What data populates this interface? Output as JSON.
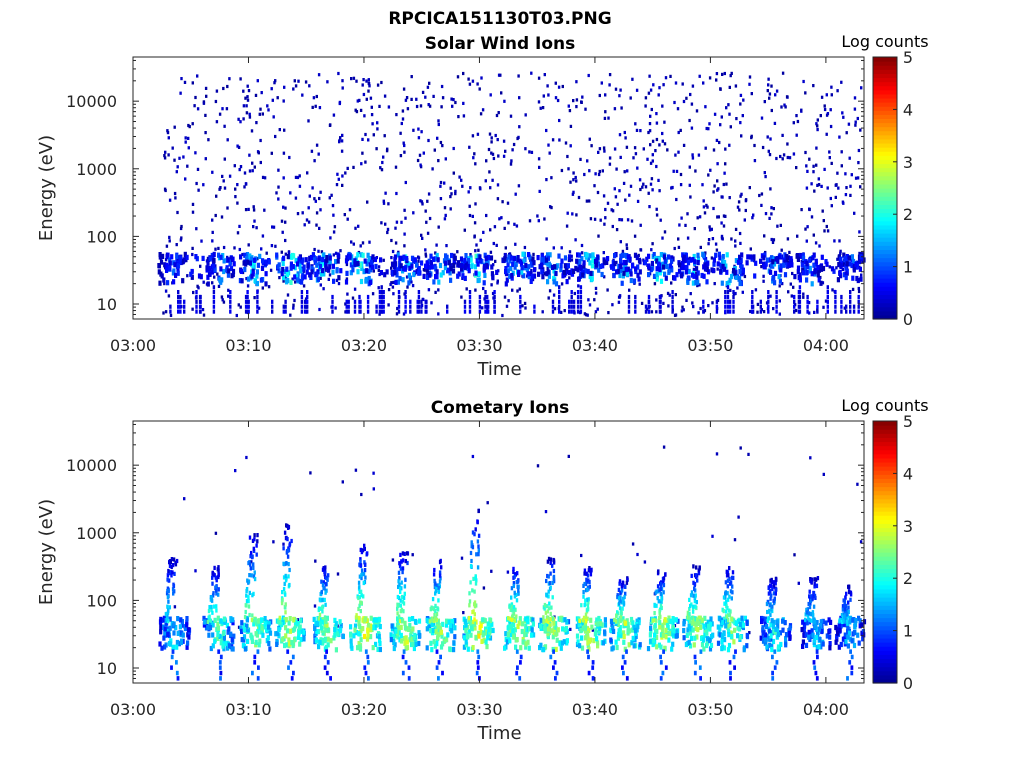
{
  "figure": {
    "title": "RPCICA151130T03.PNG"
  },
  "colors": {
    "colormap": [
      "#00008f",
      "#0000ff",
      "#0080ff",
      "#00ffff",
      "#80ff80",
      "#ffff00",
      "#ff8000",
      "#ff0000",
      "#800000"
    ],
    "frame": "#262626",
    "background": "#ffffff"
  },
  "chart_data": [
    {
      "type": "heatmap",
      "title": "Solar Wind Ions",
      "xlabel": "Time",
      "ylabel": "Energy (eV)",
      "x_ticks": [
        "03:00",
        "03:10",
        "03:20",
        "03:30",
        "03:40",
        "03:50",
        "04:00"
      ],
      "x_range_minutes": [
        0,
        63.3
      ],
      "y_ticks": [
        "10",
        "100",
        "1000",
        "10000"
      ],
      "y_tick_values": [
        10,
        100,
        1000,
        10000
      ],
      "y_range_eV": [
        6,
        45000
      ],
      "y_scale": "log",
      "colorbar": {
        "label": "Log counts",
        "range": [
          0,
          5
        ],
        "ticks": [
          "0",
          "1",
          "2",
          "3",
          "4",
          "5"
        ]
      },
      "data_start_minute": 2.5,
      "bursts": [
        {
          "t": 3.3,
          "v": 1.4
        },
        {
          "t": 7.5,
          "v": 1.8
        },
        {
          "t": 10.3,
          "v": 2.1
        },
        {
          "t": 13.5,
          "v": 2.4
        },
        {
          "t": 16.5,
          "v": 2.2
        },
        {
          "t": 19.5,
          "v": 2.3
        },
        {
          "t": 23.5,
          "v": 2.1
        },
        {
          "t": 26.5,
          "v": 2.0
        },
        {
          "t": 29.5,
          "v": 2.3
        },
        {
          "t": 33.3,
          "v": 2.1
        },
        {
          "t": 36.3,
          "v": 2.0
        },
        {
          "t": 39.5,
          "v": 2.1
        },
        {
          "t": 42.5,
          "v": 1.9
        },
        {
          "t": 45.5,
          "v": 2.2
        },
        {
          "t": 48.5,
          "v": 2.0
        },
        {
          "t": 51.5,
          "v": 2.1
        },
        {
          "t": 55.5,
          "v": 1.8
        },
        {
          "t": 58.5,
          "v": 1.6
        },
        {
          "t": 62.0,
          "v": 1.5
        }
      ],
      "noise": "dense"
    },
    {
      "type": "heatmap",
      "title": "Cometary Ions",
      "xlabel": "Time",
      "ylabel": "Energy (eV)",
      "x_ticks": [
        "03:00",
        "03:10",
        "03:20",
        "03:30",
        "03:40",
        "03:50",
        "04:00"
      ],
      "x_range_minutes": [
        0,
        63.3
      ],
      "y_ticks": [
        "10",
        "100",
        "1000",
        "10000"
      ],
      "y_tick_values": [
        10,
        100,
        1000,
        10000
      ],
      "y_range_eV": [
        6,
        45000
      ],
      "y_scale": "log",
      "colorbar": {
        "label": "Log counts",
        "range": [
          0,
          5
        ],
        "ticks": [
          "0",
          "1",
          "2",
          "3",
          "4",
          "5"
        ]
      },
      "data_start_minute": 2.5,
      "bursts": [
        {
          "t": 3.5,
          "v": 2.2,
          "peak_eV": 400
        },
        {
          "t": 7.3,
          "v": 2.6,
          "peak_eV": 300
        },
        {
          "t": 10.5,
          "v": 2.9,
          "peak_eV": 900
        },
        {
          "t": 13.5,
          "v": 3.1,
          "peak_eV": 1200
        },
        {
          "t": 16.8,
          "v": 3.0,
          "peak_eV": 300
        },
        {
          "t": 20.0,
          "v": 3.3,
          "peak_eV": 600
        },
        {
          "t": 23.5,
          "v": 3.1,
          "peak_eV": 500
        },
        {
          "t": 26.5,
          "v": 3.0,
          "peak_eV": 400
        },
        {
          "t": 29.8,
          "v": 3.3,
          "peak_eV": 2000
        },
        {
          "t": 33.3,
          "v": 3.2,
          "peak_eV": 300
        },
        {
          "t": 36.3,
          "v": 3.1,
          "peak_eV": 400
        },
        {
          "t": 39.5,
          "v": 3.2,
          "peak_eV": 300
        },
        {
          "t": 42.5,
          "v": 3.0,
          "peak_eV": 200
        },
        {
          "t": 45.8,
          "v": 3.1,
          "peak_eV": 250
        },
        {
          "t": 48.8,
          "v": 3.0,
          "peak_eV": 300
        },
        {
          "t": 51.8,
          "v": 2.9,
          "peak_eV": 300
        },
        {
          "t": 55.5,
          "v": 2.3,
          "peak_eV": 200
        },
        {
          "t": 59.0,
          "v": 2.0,
          "peak_eV": 200
        },
        {
          "t": 62.0,
          "v": 2.0,
          "peak_eV": 150
        }
      ],
      "noise": "sparse"
    }
  ]
}
